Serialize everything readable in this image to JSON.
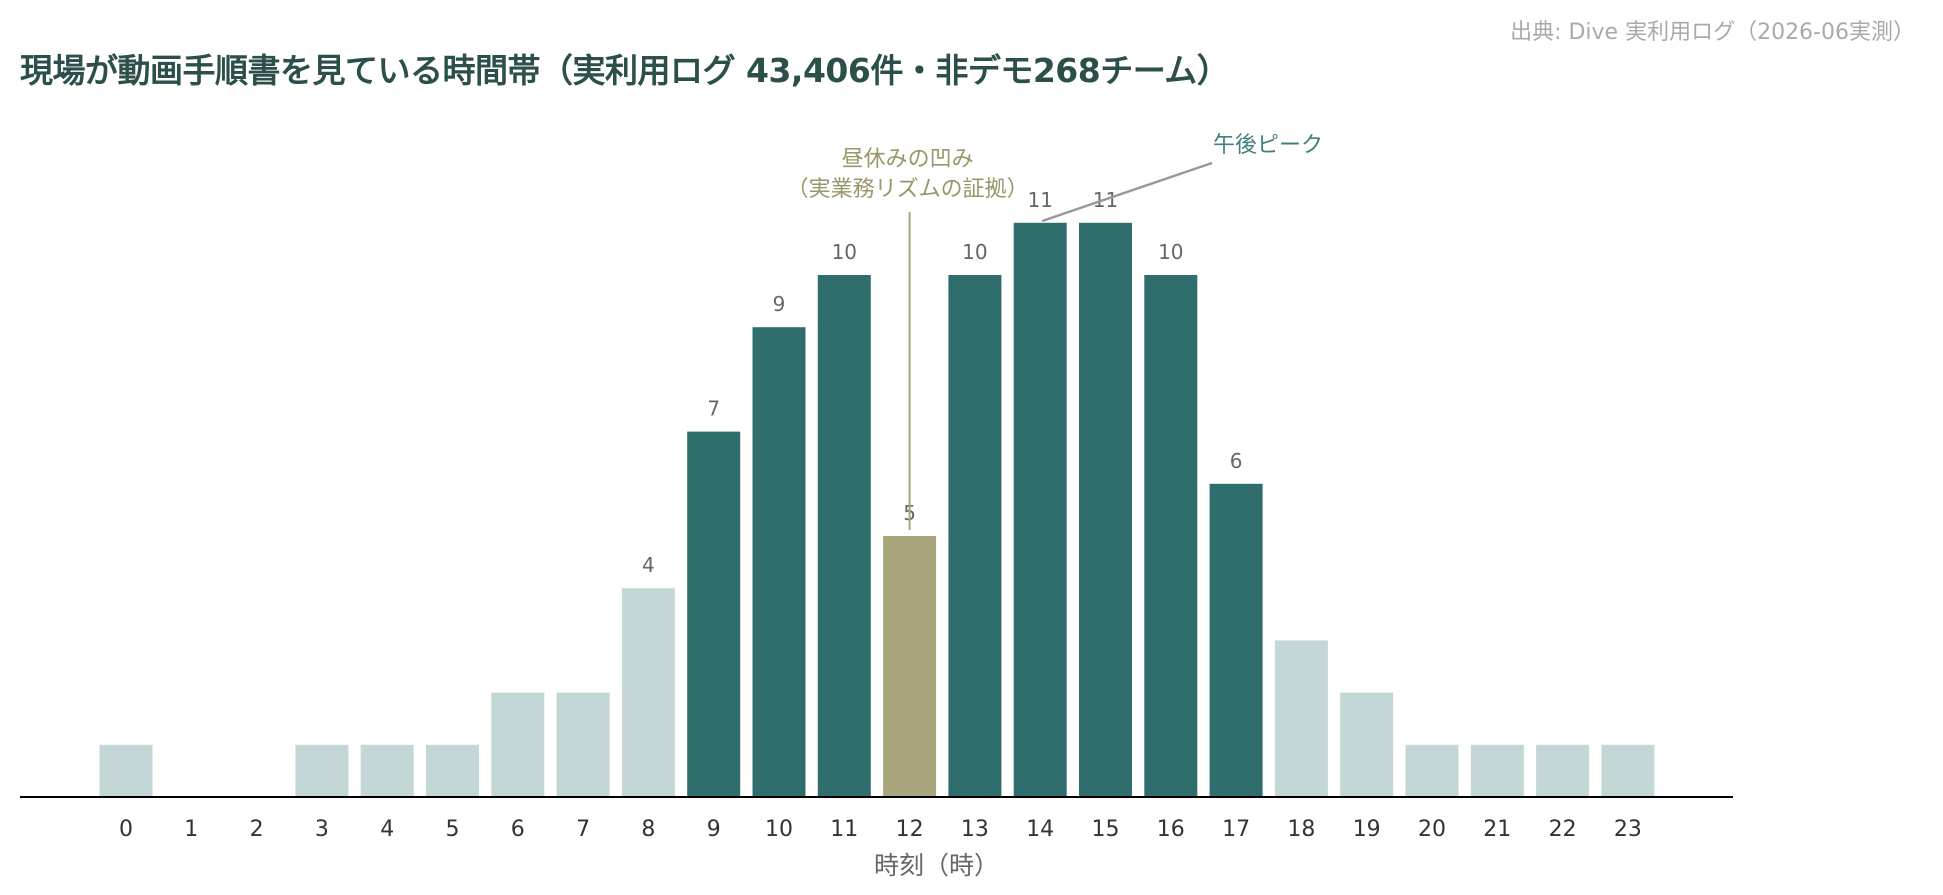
{
  "header": {
    "title": "現場が動画手順書を見ている時間帯（実利用ログ 43,406件・非デモ268チーム）",
    "source": "出典: Dive 実利用ログ（2026-06実測）"
  },
  "colors": {
    "low": "#c3d7d6",
    "high": "#306e6d",
    "dip": "#a9a67e",
    "axis": "#000000"
  },
  "chart_data": {
    "type": "bar",
    "title": "現場が動画手順書を見ている時間帯（実利用ログ 43,406件・非デモ268チーム）",
    "xlabel": "時刻（時）",
    "ylabel": "",
    "categories": [
      "0",
      "1",
      "2",
      "3",
      "4",
      "5",
      "6",
      "7",
      "8",
      "9",
      "10",
      "11",
      "12",
      "13",
      "14",
      "15",
      "16",
      "17",
      "18",
      "19",
      "20",
      "21",
      "22",
      "23"
    ],
    "values": [
      1,
      0,
      0,
      1,
      1,
      1,
      2,
      2,
      4,
      7,
      9,
      10,
      5,
      10,
      11,
      11,
      10,
      6,
      3,
      2,
      1,
      1,
      1,
      1
    ],
    "value_labels": [
      "",
      "",
      "",
      "",
      "",
      "",
      "",
      "",
      "4",
      "7",
      "9",
      "10",
      "5",
      "10",
      "11",
      "11",
      "10",
      "6",
      "",
      "",
      "",
      "",
      "",
      ""
    ],
    "highlight": {
      "high": [
        9,
        10,
        11,
        13,
        14,
        15,
        16,
        17
      ],
      "dip": [
        12
      ]
    },
    "ylim": [
      0,
      11.5
    ],
    "grid": false,
    "annotations": [
      {
        "lines": [
          "昼休みの凹み",
          "（実業務リズムの証拠）"
        ],
        "target": "12",
        "style": "dip"
      },
      {
        "lines": [
          "午後ピーク"
        ],
        "target": "14",
        "style": "peak"
      }
    ]
  }
}
